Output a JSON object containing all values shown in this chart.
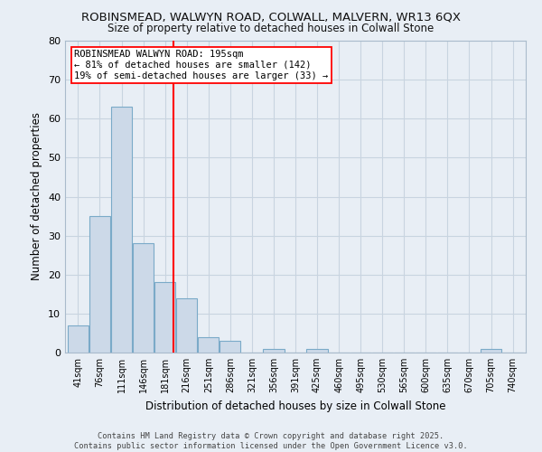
{
  "title1": "ROBINSMEAD, WALWYN ROAD, COLWALL, MALVERN, WR13 6QX",
  "title2": "Size of property relative to detached houses in Colwall Stone",
  "xlabel": "Distribution of detached houses by size in Colwall Stone",
  "ylabel": "Number of detached properties",
  "bin_labels": [
    "41sqm",
    "76sqm",
    "111sqm",
    "146sqm",
    "181sqm",
    "216sqm",
    "251sqm",
    "286sqm",
    "321sqm",
    "356sqm",
    "391sqm",
    "425sqm",
    "460sqm",
    "495sqm",
    "530sqm",
    "565sqm",
    "600sqm",
    "635sqm",
    "670sqm",
    "705sqm",
    "740sqm"
  ],
  "bar_values": [
    7,
    35,
    63,
    28,
    18,
    14,
    4,
    3,
    0,
    1,
    0,
    1,
    0,
    0,
    0,
    0,
    0,
    0,
    0,
    1,
    0
  ],
  "bar_color": "#ccd9e8",
  "bar_edge_color": "#7aaac8",
  "ylim": [
    0,
    80
  ],
  "yticks": [
    0,
    10,
    20,
    30,
    40,
    50,
    60,
    70,
    80
  ],
  "annotation_title": "ROBINSMEAD WALWYN ROAD: 195sqm",
  "annotation_line1": "← 81% of detached houses are smaller (142)",
  "annotation_line2": "19% of semi-detached houses are larger (33) →",
  "red_line_index": 4.4,
  "grid_color": "#c8d4e0",
  "background_color": "#e8eef5",
  "plot_bg_color": "#e8eef5",
  "footer1": "Contains HM Land Registry data © Crown copyright and database right 2025.",
  "footer2": "Contains public sector information licensed under the Open Government Licence v3.0."
}
